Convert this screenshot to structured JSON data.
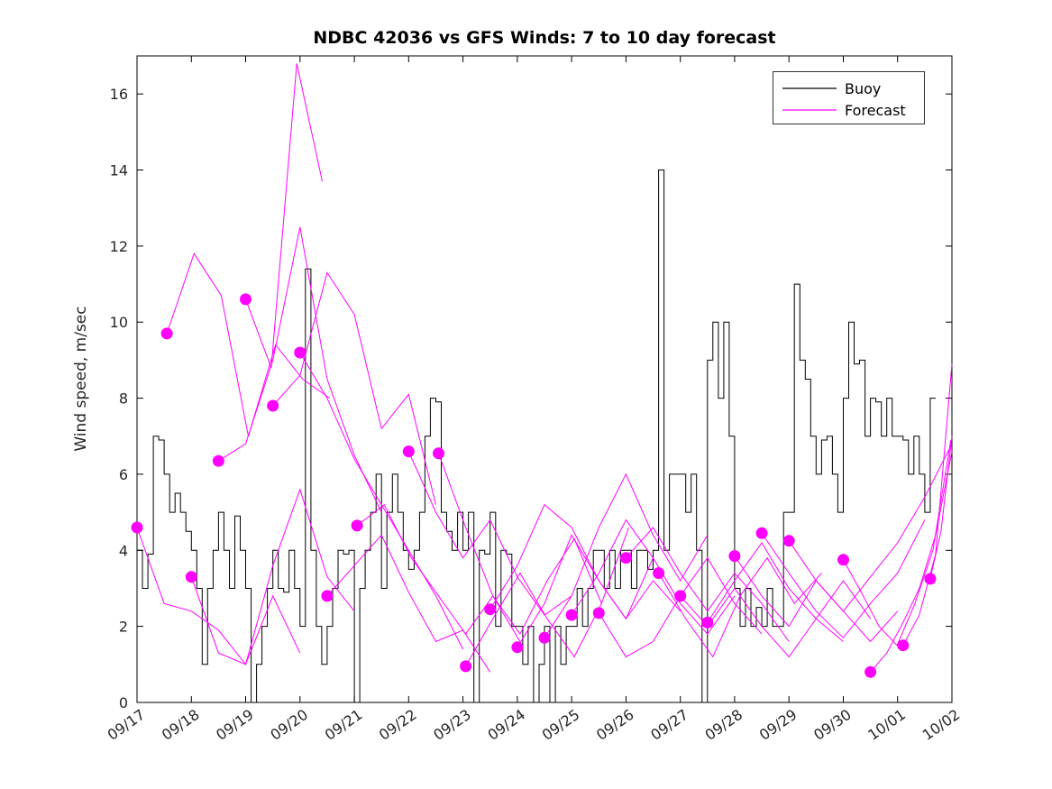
{
  "figure": {
    "title": "NDBC 42036 vs GFS Winds: 7 to 10 day forecast",
    "ylabel": "Wind speed, m/sec",
    "background": "#ffffff"
  },
  "legend": {
    "position": "northeast",
    "entries": [
      {
        "label": "Buoy",
        "color": "#000000"
      },
      {
        "label": "Forecast",
        "color": "#ff00ff"
      }
    ]
  },
  "chart_data": {
    "type": "line",
    "title": "NDBC 42036 vs GFS Winds: 7 to 10 day forecast",
    "xlabel": "",
    "ylabel": "Wind speed, m/sec",
    "grid": false,
    "legend_position": "northeast",
    "x_tick_labels": [
      "09/17",
      "09/18",
      "09/19",
      "09/20",
      "09/21",
      "09/22",
      "09/23",
      "09/24",
      "09/25",
      "09/26",
      "09/27",
      "09/28",
      "09/29",
      "09/30",
      "10/01",
      "10/02"
    ],
    "x_range_days": [
      0,
      15
    ],
    "ylim": [
      0,
      17
    ],
    "y_ticks": [
      0,
      2,
      4,
      6,
      8,
      10,
      12,
      14,
      16
    ],
    "series": [
      {
        "name": "Buoy",
        "color": "#000000",
        "style": "step",
        "x0": 0,
        "dx": 0.1,
        "y": [
          4,
          3,
          3.9,
          7,
          6.9,
          6,
          5,
          5.5,
          5,
          4.5,
          4,
          3,
          1,
          3,
          4,
          5,
          4,
          3,
          4.9,
          4,
          3,
          0,
          1,
          2,
          3,
          4,
          3,
          2.9,
          4,
          3,
          2,
          11.4,
          4,
          2,
          1,
          2,
          3,
          4,
          3.9,
          4,
          0,
          3,
          4,
          5,
          6,
          3,
          5,
          6,
          5,
          4,
          3.5,
          4,
          5,
          7,
          8,
          7.9,
          5,
          4.5,
          4,
          5,
          4,
          5,
          0,
          4,
          3.9,
          5,
          2,
          4,
          3.9,
          2,
          2,
          1,
          2,
          0,
          1,
          2,
          0,
          2,
          1,
          2,
          2,
          3,
          2,
          3,
          4,
          4,
          3,
          4,
          3,
          4,
          4,
          3,
          4,
          4,
          3.5,
          4,
          14,
          4,
          6,
          6,
          6,
          5,
          6,
          4,
          0,
          9,
          10,
          8,
          10,
          7,
          3,
          2,
          3,
          2,
          2.5,
          2,
          3,
          2,
          2,
          5,
          5,
          11,
          9,
          8.5,
          7,
          6,
          6.9,
          7,
          6,
          5,
          8,
          10,
          8.9,
          9,
          7,
          8,
          7.9,
          7,
          8,
          7,
          7,
          6.9,
          6,
          7,
          6,
          5,
          8
        ]
      },
      {
        "name": "Forecast",
        "color": "#ff00ff",
        "style": "line",
        "marker": "filled-circle",
        "segments": [
          {
            "x0": 0.0,
            "dx": 0.5,
            "y": [
              4.6,
              2.6,
              2.4,
              1.9,
              1.0,
              2.8,
              1.3
            ]
          },
          {
            "x0": 0.55,
            "dx": 0.5,
            "y": [
              9.7,
              11.8,
              10.7,
              7.0,
              9.4,
              8.5,
              8.0
            ]
          },
          {
            "x0": 1.0,
            "dx": 0.5,
            "y": [
              3.3,
              1.3,
              1.0,
              3.6,
              5.6,
              3.3,
              2.4
            ]
          },
          {
            "x0": 1.5,
            "dx": 0.5,
            "y": [
              6.35,
              6.8,
              9.0,
              12.5,
              8.5,
              6.5,
              5.0
            ]
          },
          {
            "x0": 2.0,
            "dx": 0.47,
            "y": [
              10.6,
              8.8,
              16.8,
              13.7
            ]
          },
          {
            "x0": 2.5,
            "dx": 0.5,
            "y": [
              7.8,
              8.6,
              11.3,
              10.2,
              7.2,
              8.1,
              5.2
            ]
          },
          {
            "x0": 3.0,
            "dx": 0.5,
            "y": [
              9.2,
              8.0,
              6.4,
              5.2,
              4.0,
              2.8,
              1.4
            ]
          },
          {
            "x0": 3.5,
            "dx": 0.5,
            "y": [
              2.8,
              3.6,
              4.4,
              2.9,
              1.6,
              1.9,
              0.8
            ]
          },
          {
            "x0": 4.05,
            "dx": 0.5,
            "y": [
              4.65,
              5.2,
              3.8,
              2.8,
              1.8,
              2.8,
              1.6
            ]
          },
          {
            "x0": 5.0,
            "dx": 0.5,
            "y": [
              6.6,
              5.0,
              3.8,
              4.8,
              3.3,
              2.3,
              2.8
            ]
          },
          {
            "x0": 5.55,
            "dx": 0.5,
            "y": [
              6.55,
              4.6,
              2.8,
              1.8,
              3.2,
              4.3,
              2.6
            ]
          },
          {
            "x0": 6.05,
            "dx": 0.5,
            "y": [
              0.95,
              2.2,
              3.4,
              2.2,
              1.2,
              2.6,
              4.6
            ]
          },
          {
            "x0": 6.5,
            "dx": 0.5,
            "y": [
              2.45,
              3.6,
              5.2,
              4.6,
              3.2,
              2.2,
              3.8
            ]
          },
          {
            "x0": 7.0,
            "dx": 0.5,
            "y": [
              1.45,
              2.6,
              4.4,
              3.2,
              2.2,
              3.2,
              2.4
            ]
          },
          {
            "x0": 7.5,
            "dx": 0.5,
            "y": [
              1.7,
              2.8,
              4.6,
              6.0,
              4.4,
              3.2,
              4.4
            ]
          },
          {
            "x0": 8.0,
            "dx": 0.5,
            "y": [
              2.3,
              3.4,
              4.8,
              3.8,
              2.6,
              1.8,
              2.8
            ]
          },
          {
            "x0": 8.5,
            "dx": 0.5,
            "y": [
              2.35,
              1.2,
              1.6,
              2.8,
              3.8,
              2.6,
              1.8
            ]
          },
          {
            "x0": 9.0,
            "dx": 0.5,
            "y": [
              3.8,
              4.6,
              3.4,
              2.4,
              3.4,
              2.6,
              1.6
            ]
          },
          {
            "x0": 9.6,
            "dx": 0.5,
            "y": [
              3.4,
              2.2,
              1.2,
              2.8,
              3.8,
              2.6,
              3.4
            ]
          },
          {
            "x0": 10.0,
            "dx": 0.5,
            "y": [
              2.8,
              2.0,
              3.0,
              2.0,
              1.2,
              2.2,
              1.6
            ]
          },
          {
            "x0": 10.5,
            "dx": 0.5,
            "y": [
              2.1,
              3.2,
              4.2,
              3.0,
              2.2,
              3.2,
              2.2
            ]
          },
          {
            "x0": 11.0,
            "dx": 0.5,
            "y": [
              3.85,
              2.8,
              2.0,
              3.2,
              2.4,
              1.6,
              2.4
            ]
          },
          {
            "x0": 11.5,
            "dx": 0.5,
            "y": [
              4.45,
              3.4,
              2.4,
              1.7,
              2.6,
              3.4,
              4.8
            ]
          },
          {
            "x0": 12.0,
            "dx": 0.5,
            "y": [
              4.25,
              3.2,
              2.4,
              3.3,
              4.2,
              5.4,
              6.8
            ]
          },
          {
            "x0": 13.0,
            "dx": 0.33,
            "y": [
              3.75,
              2.9,
              2.0,
              1.5,
              2.6,
              4.0,
              6.9
            ]
          },
          {
            "x0": 13.5,
            "dx": 0.3,
            "y": [
              0.8,
              1.3,
              2.1,
              3.0,
              4.4,
              6.6
            ]
          },
          {
            "x0": 14.1,
            "dx": 0.3,
            "y": [
              1.5,
              2.3,
              3.9,
              8.9
            ]
          },
          {
            "x0": 14.6,
            "dx": 0.2,
            "y": [
              3.25,
              4.5,
              7.0
            ]
          }
        ]
      }
    ]
  }
}
